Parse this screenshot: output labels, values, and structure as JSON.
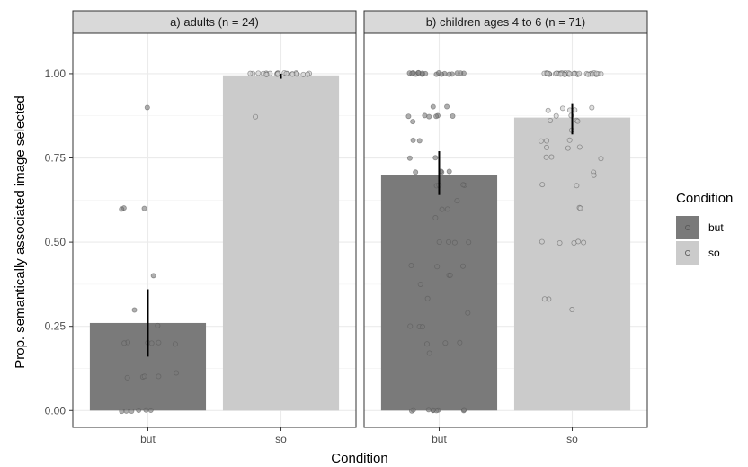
{
  "chart_data": {
    "type": "bar",
    "ylabel": "Prop. semantically associated image selected",
    "xlabel": "Condition",
    "ylim": [
      -0.05,
      1.12
    ],
    "yticks": [
      "0.00",
      "0.25",
      "0.50",
      "0.75",
      "1.00"
    ],
    "grid": true,
    "legend": {
      "title": "Condition",
      "position": "right",
      "entries": [
        {
          "label": "but",
          "color": "#7a7a7a"
        },
        {
          "label": "so",
          "color": "#cbcbcb"
        }
      ]
    },
    "colors": {
      "but": "#7a7a7a",
      "so": "#cbcbcb",
      "strip_bg": "#d9d9d9",
      "grid": "#ebebeb"
    },
    "categories": [
      "but",
      "so"
    ],
    "panels": [
      {
        "title": "a) adults (n = 24)",
        "bars": [
          {
            "category": "but",
            "value": 0.26,
            "ci": [
              0.16,
              0.36
            ]
          },
          {
            "category": "so",
            "value": 0.995,
            "ci": [
              0.985,
              1.0
            ]
          }
        ],
        "points": {
          "but": [
            0.9,
            0.6,
            0.6,
            0.6,
            0.4,
            0.3,
            0.25,
            0.2,
            0.2,
            0.2,
            0.2,
            0.2,
            0.2,
            0.11,
            0.1,
            0.1,
            0.1,
            0.1,
            0,
            0,
            0,
            0,
            0,
            0
          ],
          "so": [
            1,
            1,
            1,
            1,
            1,
            1,
            1,
            1,
            1,
            1,
            1,
            1,
            1,
            1,
            1,
            1,
            1,
            1,
            1,
            1,
            1,
            1,
            1,
            0.875
          ]
        }
      },
      {
        "title": "b) children ages 4 to 6 (n = 71)",
        "bars": [
          {
            "category": "but",
            "value": 0.7,
            "ci": [
              0.64,
              0.77
            ]
          },
          {
            "category": "so",
            "value": 0.87,
            "ci": [
              0.82,
              0.91
            ]
          }
        ],
        "points": {
          "but": [
            1,
            1,
            1,
            1,
            1,
            1,
            1,
            1,
            1,
            1,
            1,
            1,
            1,
            1,
            1,
            1,
            1,
            1,
            0.9,
            0.9,
            0.875,
            0.875,
            0.875,
            0.875,
            0.875,
            0.875,
            0.86,
            0.8,
            0.8,
            0.75,
            0.75,
            0.71,
            0.71,
            0.71,
            0.71,
            0.67,
            0.67,
            0.67,
            0.67,
            0.625,
            0.6,
            0.6,
            0.57,
            0.5,
            0.5,
            0.5,
            0.5,
            0.43,
            0.43,
            0.43,
            0.4,
            0.4,
            0.375,
            0.33,
            0.29,
            0.25,
            0.25,
            0.25,
            0.2,
            0.2,
            0.2,
            0.17,
            0,
            0,
            0,
            0,
            0,
            0,
            0,
            0,
            0
          ],
          "so": [
            1,
            1,
            1,
            1,
            1,
            1,
            1,
            1,
            1,
            1,
            1,
            1,
            1,
            1,
            1,
            1,
            1,
            1,
            1,
            1,
            1,
            1,
            1,
            1,
            1,
            1,
            1,
            1,
            1,
            1,
            1,
            1,
            1,
            1,
            0.9,
            0.9,
            0.89,
            0.89,
            0.875,
            0.875,
            0.86,
            0.86,
            0.83,
            0.8,
            0.8,
            0.78,
            0.78,
            0.78,
            0.75,
            0.75,
            0.71,
            0.7,
            0.67,
            0.67,
            0.6,
            0.6,
            0.5,
            0.5,
            0.5,
            0.5,
            0.33,
            0.33,
            0.3,
            0.5,
            0.8,
            0.75,
            0.86,
            0.89,
            1,
            1,
            1
          ]
        }
      }
    ]
  }
}
